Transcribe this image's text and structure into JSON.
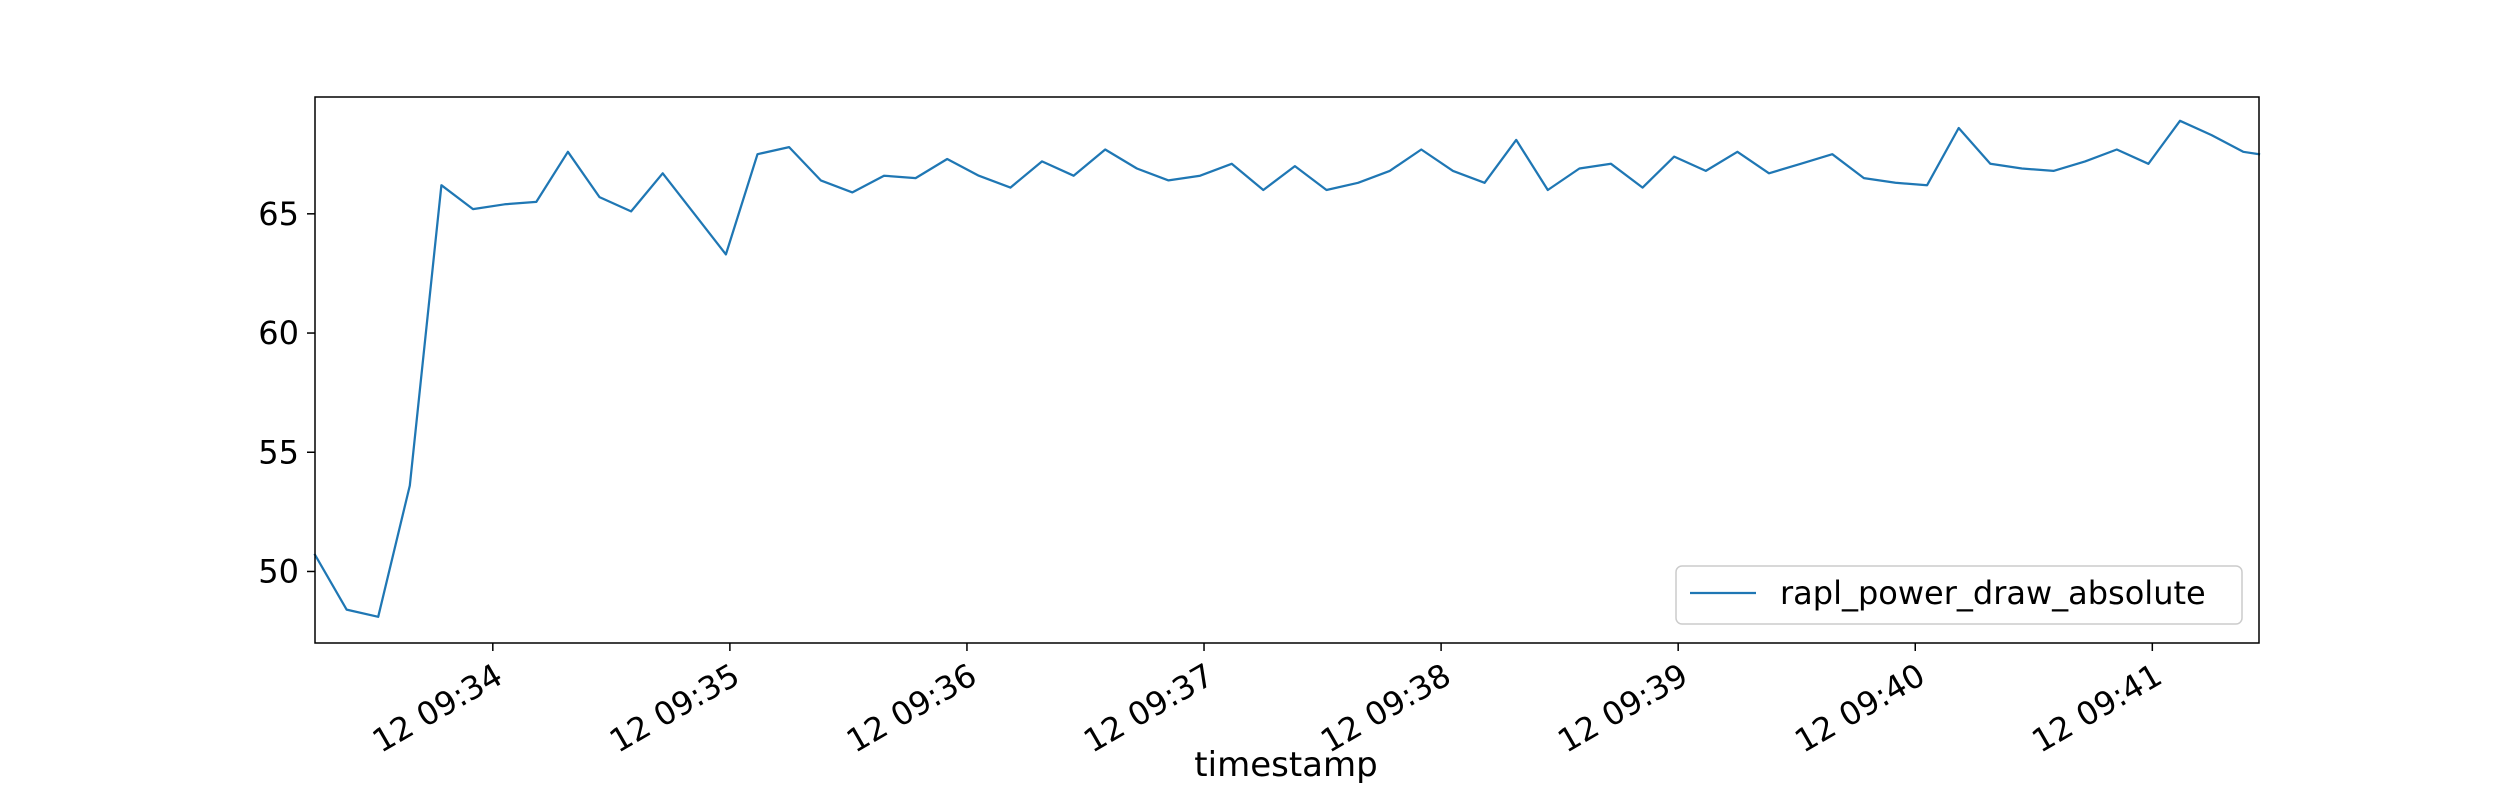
{
  "chart_data": {
    "type": "line",
    "title": "",
    "xlabel": "timestamp",
    "ylabel": "",
    "x_tick_labels": [
      "12 09:34",
      "12 09:35",
      "12 09:36",
      "12 09:37",
      "12 09:38",
      "12 09:39",
      "12 09:40",
      "12 09:41"
    ],
    "y_ticks": [
      50,
      55,
      60,
      65
    ],
    "ylim": [
      47.0,
      69.9
    ],
    "xlim": [
      "09:33:15",
      "09:41:27"
    ],
    "grid": false,
    "legend": {
      "position": "lower-right",
      "entries": [
        "rapl_power_draw_absolute"
      ]
    },
    "series": [
      {
        "name": "rapl_power_draw_absolute",
        "color": "#1f77b4",
        "x": [
          "09:33:15",
          "09:33:23",
          "09:33:31",
          "09:33:39",
          "09:33:47",
          "09:33:55",
          "09:34:03",
          "09:34:11",
          "09:34:19",
          "09:34:27",
          "09:34:35",
          "09:34:43",
          "09:34:51",
          "09:34:59",
          "09:35:07",
          "09:35:15",
          "09:35:23",
          "09:35:31",
          "09:35:39",
          "09:35:47",
          "09:35:55",
          "09:36:03",
          "09:36:11",
          "09:36:19",
          "09:36:27",
          "09:36:35",
          "09:36:43",
          "09:36:51",
          "09:36:59",
          "09:37:07",
          "09:37:15",
          "09:37:23",
          "09:37:31",
          "09:37:39",
          "09:37:47",
          "09:37:55",
          "09:38:03",
          "09:38:11",
          "09:38:19",
          "09:38:27",
          "09:38:35",
          "09:38:43",
          "09:38:51",
          "09:38:59",
          "09:39:07",
          "09:39:15",
          "09:39:23",
          "09:39:31",
          "09:39:39",
          "09:39:47",
          "09:39:55",
          "09:40:03",
          "09:40:11",
          "09:40:19",
          "09:40:27",
          "09:40:35",
          "09:40:43",
          "09:40:51",
          "09:40:59",
          "09:41:07",
          "09:41:15",
          "09:41:23",
          "09:41:27"
        ],
        "values": [
          50.7,
          48.4,
          48.1,
          53.6,
          66.2,
          65.2,
          65.4,
          65.5,
          67.6,
          65.7,
          65.1,
          66.7,
          65.0,
          63.3,
          67.5,
          67.8,
          66.4,
          65.9,
          66.6,
          66.5,
          67.3,
          66.6,
          66.1,
          67.2,
          66.6,
          67.7,
          66.9,
          66.4,
          66.6,
          67.1,
          66.0,
          67.0,
          66.0,
          66.3,
          66.8,
          67.7,
          66.8,
          66.3,
          68.1,
          66.0,
          66.9,
          67.1,
          66.1,
          67.4,
          66.8,
          67.6,
          66.7,
          67.1,
          67.5,
          66.5,
          66.3,
          66.2,
          68.6,
          67.1,
          66.9,
          66.8,
          67.2,
          67.7,
          67.1,
          68.9,
          68.3,
          67.6,
          67.5
        ]
      }
    ]
  }
}
